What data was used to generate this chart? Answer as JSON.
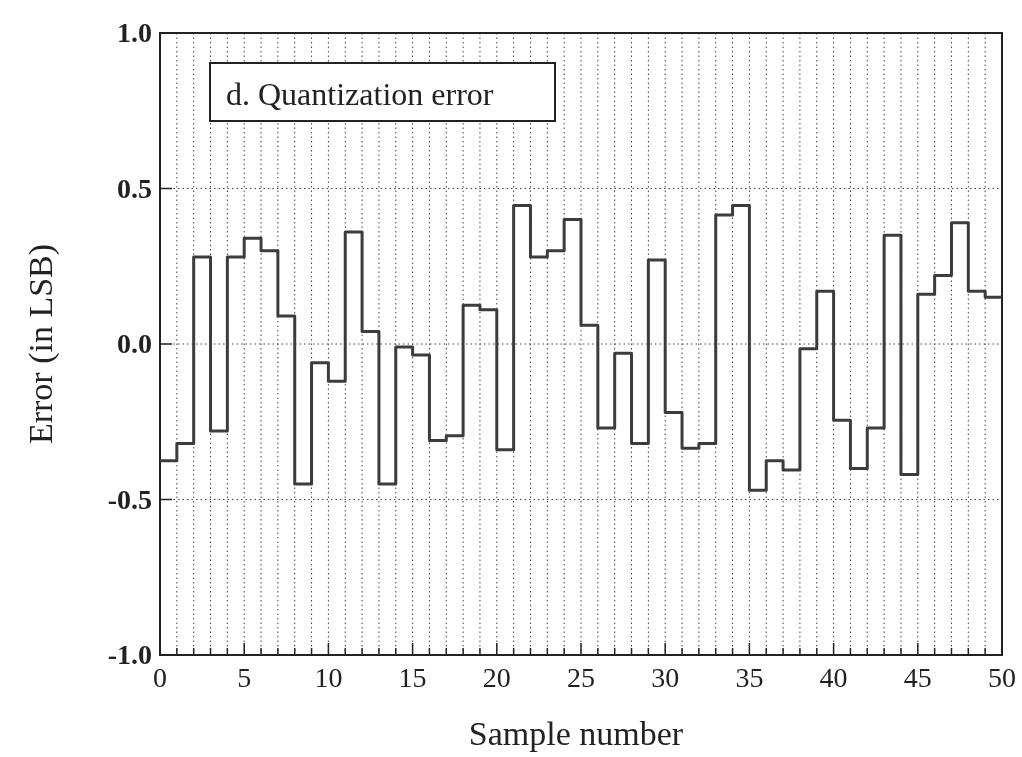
{
  "chart_data": {
    "type": "step",
    "title": "d. Quantization error",
    "xlabel": "Sample number",
    "ylabel": "Error (in LSB)",
    "x": [
      0,
      1,
      2,
      3,
      4,
      5,
      6,
      7,
      8,
      9,
      10,
      11,
      12,
      13,
      14,
      15,
      16,
      17,
      18,
      19,
      20,
      21,
      22,
      23,
      24,
      25,
      26,
      27,
      28,
      29,
      30,
      31,
      32,
      33,
      34,
      35,
      36,
      37,
      38,
      39,
      40,
      41,
      42,
      43,
      44,
      45,
      46,
      47,
      48,
      49,
      50
    ],
    "series": [
      {
        "color": "#3c3c3c",
        "values": [
          -0.375,
          -0.32,
          0.28,
          -0.28,
          0.28,
          0.34,
          0.3,
          0.09,
          -0.45,
          -0.06,
          -0.12,
          0.36,
          0.04,
          -0.45,
          -0.01,
          -0.035,
          -0.31,
          -0.295,
          0.125,
          0.11,
          -0.34,
          0.445,
          0.28,
          0.3,
          0.4,
          0.06,
          -0.27,
          -0.03,
          -0.32,
          0.27,
          -0.22,
          -0.335,
          -0.32,
          0.415,
          0.445,
          -0.47,
          -0.375,
          -0.405,
          -0.015,
          0.17,
          -0.245,
          -0.4,
          -0.27,
          0.35,
          -0.42,
          0.16,
          0.22,
          0.39,
          0.17,
          0.15,
          0.15
        ]
      }
    ],
    "xlim": [
      0,
      50
    ],
    "ylim": [
      -1,
      1
    ],
    "xticks": [
      0,
      {
        "value": 1,
        "label": null
      },
      {
        "value": 2,
        "label": null
      },
      {
        "value": 3,
        "label": null
      },
      {
        "value": 4,
        "label": null
      },
      5,
      {
        "value": 6,
        "label": null
      },
      {
        "value": 7,
        "label": null
      },
      {
        "value": 8,
        "label": null
      },
      {
        "value": 9,
        "label": null
      },
      10,
      {
        "value": 11,
        "label": null
      },
      {
        "value": 12,
        "label": null
      },
      {
        "value": 13,
        "label": null
      },
      {
        "value": 14,
        "label": null
      },
      15,
      {
        "value": 16,
        "label": null
      },
      {
        "value": 17,
        "label": null
      },
      {
        "value": 18,
        "label": null
      },
      {
        "value": 19,
        "label": null
      },
      20,
      {
        "value": 21,
        "label": null
      },
      {
        "value": 22,
        "label": null
      },
      {
        "value": 23,
        "label": null
      },
      {
        "value": 24,
        "label": null
      },
      25,
      {
        "value": 26,
        "label": null
      },
      {
        "value": 27,
        "label": null
      },
      {
        "value": 28,
        "label": null
      },
      {
        "value": 29,
        "label": null
      },
      30,
      {
        "value": 31,
        "label": null
      },
      {
        "value": 32,
        "label": null
      },
      {
        "value": 33,
        "label": null
      },
      {
        "value": 34,
        "label": null
      },
      35,
      {
        "value": 36,
        "label": null
      },
      {
        "value": 37,
        "label": null
      },
      {
        "value": 38,
        "label": null
      },
      {
        "value": 39,
        "label": null
      },
      40,
      {
        "value": 41,
        "label": null
      },
      {
        "value": 42,
        "label": null
      },
      {
        "value": 43,
        "label": null
      },
      {
        "value": 44,
        "label": null
      },
      45,
      {
        "value": 46,
        "label": null
      },
      {
        "value": 47,
        "label": null
      },
      {
        "value": 48,
        "label": null
      },
      {
        "value": 49,
        "label": null
      },
      50
    ],
    "yticks": [
      {
        "value": -1,
        "label": "-1.0"
      },
      {
        "value": -0.5,
        "label": "-0.5"
      },
      {
        "value": 0,
        "label": "0.0"
      },
      {
        "value": 0.5,
        "label": "0.5"
      },
      {
        "value": 1,
        "label": "1.0"
      }
    ],
    "grid": true,
    "line_style": "solid",
    "marker": "none"
  }
}
